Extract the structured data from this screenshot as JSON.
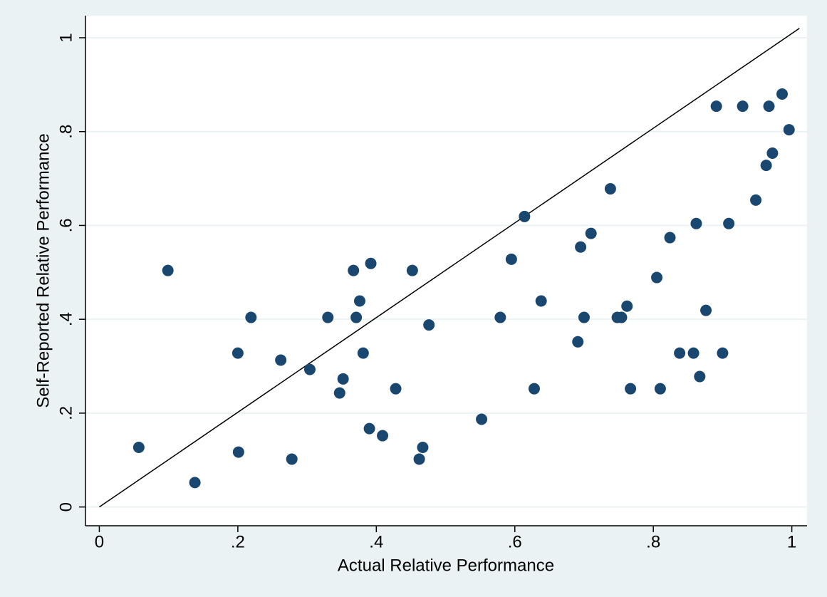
{
  "chart_data": {
    "type": "scatter",
    "x_label": "Actual Relative Performance",
    "y_label": "Self-Reported Relative Performance",
    "xlim": [
      -0.02,
      1.022
    ],
    "ylim": [
      -0.04,
      1.047
    ],
    "xticks": [
      0,
      {
        "value": 0.2,
        "label": ".2"
      },
      {
        "value": 0.4,
        "label": ".4"
      },
      {
        "value": 0.6,
        "label": ".6"
      },
      {
        "value": 0.8,
        "label": ".8"
      },
      1
    ],
    "yticks": [
      0,
      {
        "value": 0.2,
        "label": ".2"
      },
      {
        "value": 0.4,
        "label": ".4"
      },
      {
        "value": 0.6,
        "label": ".6"
      },
      {
        "value": 0.8,
        "label": ".8"
      },
      1
    ],
    "grid": true,
    "grid_color": "#eaf2f3",
    "reference_line": {
      "x": [
        0,
        1.011
      ],
      "y": [
        0,
        1.02
      ],
      "color": "#000000"
    },
    "series": [
      {
        "color": "#1a476f",
        "x": [
          0.057,
          0.099,
          0.138,
          0.2,
          0.201,
          0.219,
          0.262,
          0.278,
          0.304,
          0.33,
          0.347,
          0.352,
          0.367,
          0.371,
          0.376,
          0.381,
          0.39,
          0.392,
          0.409,
          0.428,
          0.452,
          0.462,
          0.467,
          0.476,
          0.552,
          0.579,
          0.595,
          0.614,
          0.628,
          0.638,
          0.691,
          0.695,
          0.7,
          0.71,
          0.738,
          0.748,
          0.754,
          0.762,
          0.767,
          0.805,
          0.81,
          0.824,
          0.838,
          0.858,
          0.862,
          0.867,
          0.876,
          0.891,
          0.9,
          0.909,
          0.929,
          0.948,
          0.963,
          0.967,
          0.972,
          0.986,
          0.996
        ],
        "values": [
          0.127,
          0.504,
          0.052,
          0.328,
          0.117,
          0.404,
          0.313,
          0.102,
          0.293,
          0.404,
          0.243,
          0.273,
          0.504,
          0.404,
          0.439,
          0.328,
          0.167,
          0.519,
          0.152,
          0.252,
          0.504,
          0.102,
          0.127,
          0.388,
          0.187,
          0.404,
          0.528,
          0.619,
          0.252,
          0.439,
          0.352,
          0.554,
          0.404,
          0.583,
          0.678,
          0.404,
          0.404,
          0.428,
          0.252,
          0.489,
          0.252,
          0.574,
          0.328,
          0.328,
          0.604,
          0.278,
          0.419,
          0.854,
          0.328,
          0.604,
          0.854,
          0.654,
          0.728,
          0.854,
          0.754,
          0.88,
          0.804
        ]
      }
    ]
  }
}
